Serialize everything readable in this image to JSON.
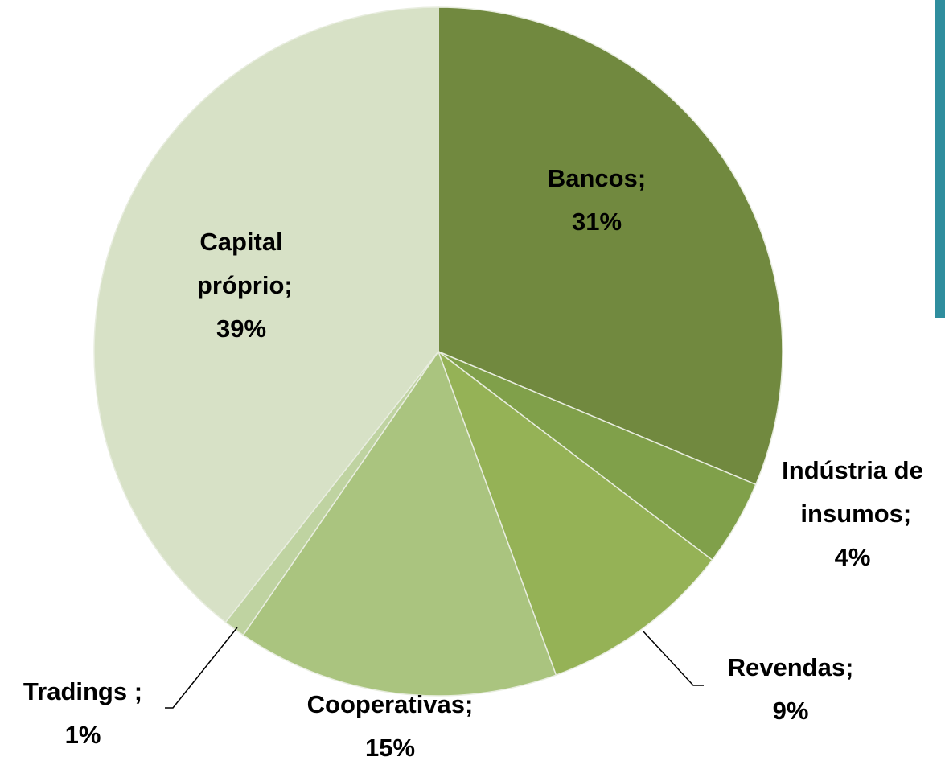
{
  "chart_data": {
    "type": "pie",
    "categories": [
      "Bancos;",
      "Indústria de insumos;",
      "Revendas;",
      "Cooperativas;",
      "Tradings ;",
      "Capital próprio;"
    ],
    "values": [
      31,
      4,
      9,
      15,
      1,
      39
    ],
    "value_labels": [
      "31%",
      "4%",
      "9%",
      "15%",
      "1%",
      "39%"
    ],
    "colors": [
      "#71893f",
      "#80a04a",
      "#95b256",
      "#aac47f",
      "#bfd3a1",
      "#d7e1c6"
    ]
  }
}
